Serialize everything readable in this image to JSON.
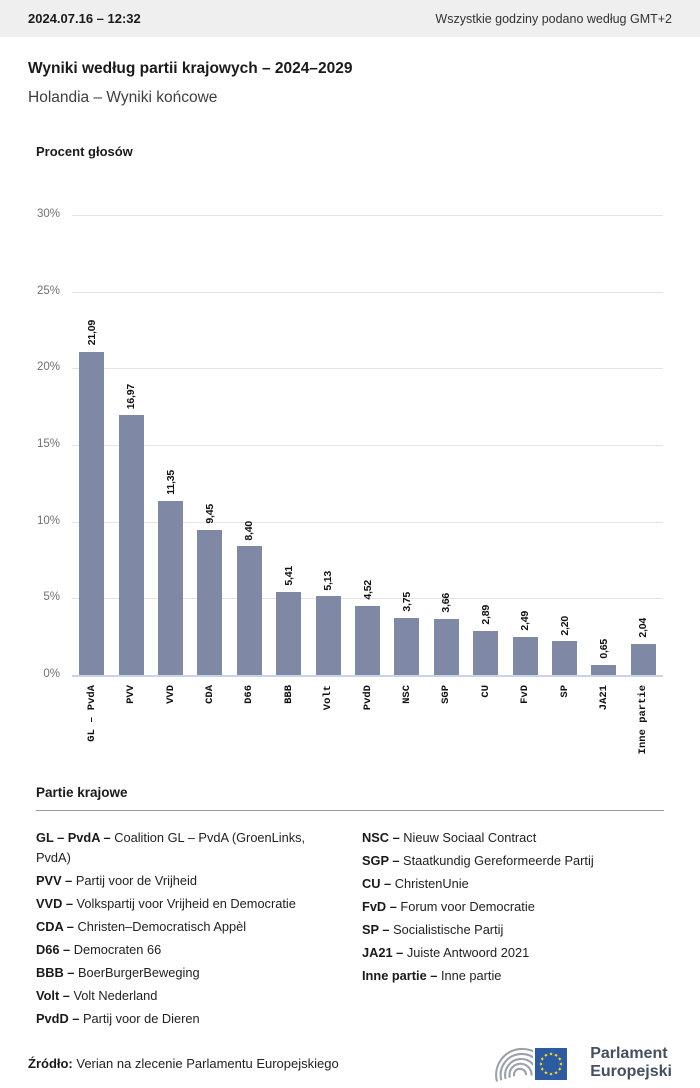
{
  "topbar": {
    "timestamp": "2024.07.16 – 12:32",
    "timezone_note": "Wszystkie godziny podano według GMT+2"
  },
  "header": {
    "title": "Wyniki według partii krajowych – 2024–2029",
    "subtitle": "Holandia – Wyniki końcowe"
  },
  "chart_data": {
    "type": "bar",
    "title": "Procent głosów",
    "ylabel": "Procent głosów",
    "categories": [
      "GL – PvdA",
      "PVV",
      "VVD",
      "CDA",
      "D66",
      "BBB",
      "Volt",
      "PvdD",
      "NSC",
      "SGP",
      "CU",
      "FvD",
      "SP",
      "JA21",
      "Inne partie"
    ],
    "values": [
      21.09,
      16.97,
      11.35,
      9.45,
      8.4,
      5.41,
      5.13,
      4.52,
      3.75,
      3.66,
      2.89,
      2.49,
      2.2,
      0.65,
      2.04
    ],
    "value_labels": [
      "21,09",
      "16,97",
      "11,35",
      "9,45",
      "8,40",
      "5,41",
      "5,13",
      "4,52",
      "3,75",
      "3,66",
      "2,89",
      "2,49",
      "2,20",
      "0,65",
      "2,04"
    ],
    "ylim": [
      0,
      30
    ],
    "yticks": [
      "30%",
      "25%",
      "20%",
      "15%",
      "10%",
      "5%",
      "0%"
    ],
    "grid": true,
    "legend_position": "none",
    "bar_color": "#7f89a6"
  },
  "legend": {
    "title": "Partie krajowe",
    "columns": [
      [
        {
          "abbr": "GL – PvdA –",
          "name": "Coalition GL – PvdA (GroenLinks, PvdA)"
        },
        {
          "abbr": "PVV –",
          "name": "Partij voor de Vrijheid"
        },
        {
          "abbr": "VVD –",
          "name": "Volkspartij voor Vrijheid en Democratie"
        },
        {
          "abbr": "CDA –",
          "name": "Christen–Democratisch Appèl"
        },
        {
          "abbr": "D66 –",
          "name": "Democraten 66"
        },
        {
          "abbr": "BBB –",
          "name": "BoerBurgerBeweging"
        },
        {
          "abbr": "Volt –",
          "name": "Volt Nederland"
        },
        {
          "abbr": "PvdD –",
          "name": "Partij voor de Dieren"
        }
      ],
      [
        {
          "abbr": "NSC –",
          "name": "Nieuw Sociaal Contract"
        },
        {
          "abbr": "SGP –",
          "name": "Staatkundig Gereformeerde Partij"
        },
        {
          "abbr": "CU –",
          "name": "ChristenUnie"
        },
        {
          "abbr": "FvD –",
          "name": "Forum voor Democratie"
        },
        {
          "abbr": "SP –",
          "name": "Socialistische Partij"
        },
        {
          "abbr": "JA21 –",
          "name": "Juiste Antwoord 2021"
        },
        {
          "abbr": "Inne partie –",
          "name": "Inne partie"
        }
      ]
    ]
  },
  "footer": {
    "source_label": "Źródło:",
    "source_text": " Verian na zlecenie Parlamentu Europejskiego",
    "logo_line1": "Parlament",
    "logo_line2": "Europejski"
  },
  "colors": {
    "bar": "#7f89a6",
    "axis_baseline": "#c8d4e9",
    "gridline": "#e4e4e4",
    "topbar_bg": "#efefef",
    "flag_blue": "#2c5ba4",
    "star_yellow": "#ffd617",
    "logo_arcs_gray": "#9aa1a8",
    "logo_text": "#44505f"
  }
}
